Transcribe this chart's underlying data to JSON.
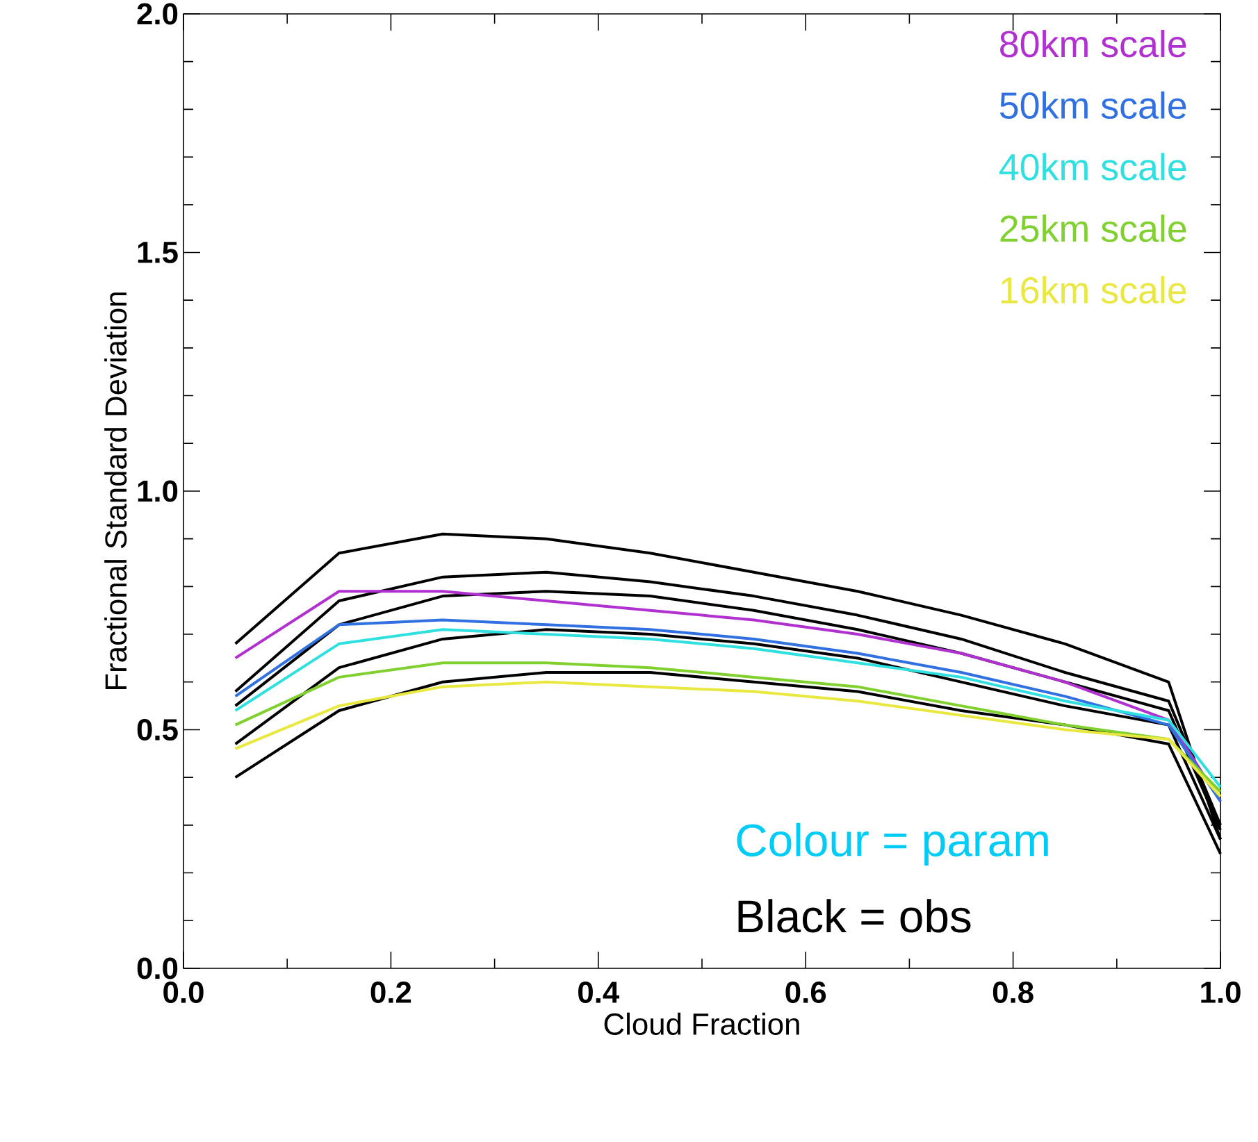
{
  "chart_data": {
    "type": "line",
    "xlabel": "Cloud Fraction",
    "ylabel": "Fractional Standard Deviation",
    "x": [
      0.05,
      0.15,
      0.25,
      0.35,
      0.45,
      0.55,
      0.65,
      0.75,
      0.85,
      0.95,
      1.0
    ],
    "series": [
      {
        "color": "#000000",
        "values": [
          0.68,
          0.87,
          0.91,
          0.9,
          0.87,
          0.83,
          0.79,
          0.74,
          0.68,
          0.6,
          0.27
        ]
      },
      {
        "color": "#000000",
        "values": [
          0.58,
          0.77,
          0.82,
          0.83,
          0.81,
          0.78,
          0.74,
          0.69,
          0.62,
          0.56,
          0.3
        ]
      },
      {
        "color": "#000000",
        "values": [
          0.55,
          0.72,
          0.78,
          0.79,
          0.78,
          0.75,
          0.71,
          0.66,
          0.6,
          0.54,
          0.29
        ]
      },
      {
        "color": "#000000",
        "values": [
          0.47,
          0.63,
          0.69,
          0.71,
          0.7,
          0.68,
          0.65,
          0.6,
          0.55,
          0.51,
          0.27
        ]
      },
      {
        "color": "#000000",
        "values": [
          0.4,
          0.54,
          0.6,
          0.62,
          0.62,
          0.6,
          0.58,
          0.54,
          0.51,
          0.47,
          0.24
        ]
      },
      {
        "name": "80km scale",
        "color": "#b030d0",
        "values": [
          0.65,
          0.79,
          0.79,
          0.77,
          0.75,
          0.73,
          0.7,
          0.66,
          0.6,
          0.52,
          0.35
        ]
      },
      {
        "name": "50km scale",
        "color": "#3070e0",
        "values": [
          0.57,
          0.72,
          0.73,
          0.72,
          0.71,
          0.69,
          0.66,
          0.62,
          0.57,
          0.51,
          0.35
        ]
      },
      {
        "name": "40km scale",
        "color": "#30e0e0",
        "values": [
          0.54,
          0.68,
          0.71,
          0.7,
          0.69,
          0.67,
          0.64,
          0.61,
          0.56,
          0.52,
          0.38
        ]
      },
      {
        "name": "25km scale",
        "color": "#80d030",
        "values": [
          0.51,
          0.61,
          0.64,
          0.64,
          0.63,
          0.61,
          0.59,
          0.55,
          0.51,
          0.48,
          0.37
        ]
      },
      {
        "name": "16km scale",
        "color": "#e8e840",
        "values": [
          0.46,
          0.55,
          0.59,
          0.6,
          0.59,
          0.58,
          0.56,
          0.53,
          0.5,
          0.48,
          0.36
        ]
      }
    ],
    "xlim": [
      0.0,
      1.0
    ],
    "xticks": [
      {
        "value": 0,
        "label": "0.0"
      },
      0.2,
      0.4,
      0.6,
      0.8,
      {
        "value": 1,
        "label": "1.0"
      }
    ],
    "ylim": [
      0.0,
      2.0
    ],
    "yticks": [
      {
        "value": 0,
        "label": "0.0"
      },
      0.5,
      {
        "value": 1,
        "label": "1.0"
      },
      1.5,
      {
        "value": 2,
        "label": "2.0"
      }
    ],
    "legend": "top right",
    "grid": false,
    "line_style": "solid",
    "annotations": [
      "Colour = param",
      "Black = obs"
    ]
  }
}
